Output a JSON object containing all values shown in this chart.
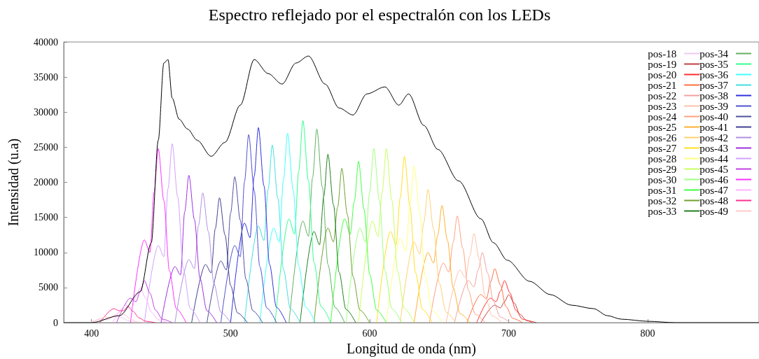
{
  "chart_data": {
    "type": "line",
    "title": "Espectro reflejado por el espectralón con los LEDs",
    "xlabel": "Longitud de onda (nm)",
    "ylabel": "Intensidad (u.a)",
    "xlim": [
      380,
      880
    ],
    "xticks": [
      400,
      500,
      600,
      700,
      800
    ],
    "ylim": [
      0,
      40000
    ],
    "yticks": [
      0,
      5000,
      10000,
      15000,
      20000,
      25000,
      30000,
      35000,
      40000
    ],
    "legend": "top right",
    "marker": "none",
    "series": [
      {
        "color": "#000000",
        "x": [
          380,
          400,
          420,
          435,
          443,
          448,
          452,
          455,
          458,
          463,
          469,
          476,
          486,
          496,
          507,
          517,
          527,
          537,
          547,
          556,
          568,
          578,
          588,
          598,
          611,
          621,
          628,
          639,
          649,
          664,
          680,
          689,
          699,
          715,
          730,
          745,
          761,
          771,
          781,
          800,
          820,
          880
        ],
        "values": [
          0,
          0,
          1000,
          4400,
          11400,
          26000,
          37000,
          37500,
          32000,
          29000,
          27600,
          26000,
          23700,
          25700,
          31000,
          37500,
          35500,
          34000,
          37000,
          38000,
          34000,
          30600,
          29600,
          32600,
          33600,
          31000,
          32600,
          28100,
          24700,
          20200,
          14800,
          11400,
          8900,
          5900,
          4000,
          2500,
          2000,
          1000,
          500,
          200,
          0,
          0
        ]
      },
      {
        "name": "pos-18",
        "color": "#f0c8f0",
        "x": [
          398,
          408,
          412,
          415,
          418,
          422,
          426,
          431,
          438
        ],
        "values": [
          0,
          500,
          400,
          800,
          1000,
          700,
          300,
          100,
          0
        ]
      },
      {
        "name": "pos-19",
        "color": "#c04040",
        "x": [
          680,
          690,
          694,
          697,
          700,
          704,
          708,
          713,
          720
        ],
        "values": [
          0,
          2500,
          2100,
          3000,
          4000,
          2800,
          1200,
          300,
          0
        ]
      },
      {
        "name": "pos-20",
        "color": "#ff3030",
        "x": [
          677,
          687,
          691,
          694,
          697,
          701,
          705,
          710,
          717
        ],
        "values": [
          0,
          3500,
          3000,
          4500,
          6000,
          4200,
          1800,
          500,
          0
        ]
      },
      {
        "name": "pos-21",
        "color": "#ff7040",
        "x": [
          670,
          680,
          684,
          687,
          690,
          694,
          698,
          703,
          710
        ],
        "values": [
          0,
          4000,
          3400,
          5800,
          7700,
          5400,
          2300,
          600,
          0
        ]
      },
      {
        "name": "pos-22",
        "color": "#f0a0a0",
        "x": [
          661,
          671,
          675,
          678,
          681,
          685,
          689,
          694,
          701
        ],
        "values": [
          0,
          6000,
          5100,
          7500,
          10000,
          7000,
          3000,
          800,
          0
        ]
      },
      {
        "name": "pos-23",
        "color": "#ffc0a8",
        "x": [
          655,
          665,
          669,
          672,
          675,
          679,
          683,
          688,
          695
        ],
        "values": [
          0,
          7500,
          6400,
          9500,
          12700,
          8900,
          3800,
          1000,
          0
        ]
      },
      {
        "name": "pos-24",
        "color": "#ffa080",
        "x": [
          643,
          653,
          657,
          660,
          663,
          667,
          671,
          676,
          683
        ],
        "values": [
          0,
          8500,
          7200,
          11400,
          15200,
          10600,
          4600,
          1200,
          0
        ]
      },
      {
        "name": "pos-25",
        "color": "#ffb030",
        "x": [
          632,
          642,
          646,
          649,
          652,
          656,
          660,
          665,
          672
        ],
        "values": [
          0,
          10000,
          8500,
          12500,
          16700,
          11700,
          5000,
          1300,
          0
        ]
      },
      {
        "name": "pos-26",
        "color": "#ffd070",
        "x": [
          622,
          632,
          636,
          639,
          642,
          646,
          650,
          655,
          662
        ],
        "values": [
          0,
          11500,
          9800,
          14300,
          19000,
          13300,
          5700,
          1500,
          0
        ]
      },
      {
        "name": "pos-27",
        "color": "#ffe020",
        "x": [
          605,
          615,
          619,
          622,
          625,
          629,
          633,
          638,
          645
        ],
        "values": [
          0,
          13000,
          11100,
          17800,
          23700,
          16600,
          7100,
          1900,
          0
        ]
      },
      {
        "name": "pos-28",
        "color": "#ffff80",
        "x": [
          612,
          622,
          626,
          629,
          632,
          636,
          640,
          645,
          652
        ],
        "values": [
          0,
          12000,
          10200,
          16700,
          22300,
          15600,
          6700,
          1800,
          0
        ]
      },
      {
        "name": "pos-29",
        "color": "#c8ff60",
        "x": [
          592,
          602,
          606,
          609,
          612,
          616,
          620,
          625,
          632
        ],
        "values": [
          0,
          14500,
          12300,
          18600,
          24800,
          17400,
          7400,
          2000,
          0
        ]
      },
      {
        "name": "pos-30",
        "color": "#a0ff80",
        "x": [
          583,
          593,
          597,
          600,
          603,
          607,
          611,
          616,
          623
        ],
        "values": [
          0,
          13500,
          11500,
          18600,
          24800,
          17400,
          7400,
          2000,
          0
        ]
      },
      {
        "name": "pos-31",
        "color": "#40ff40",
        "x": [
          572,
          582,
          586,
          589,
          592,
          596,
          600,
          605,
          612
        ],
        "values": [
          0,
          14800,
          12600,
          17300,
          23000,
          16100,
          6900,
          1800,
          0
        ]
      },
      {
        "name": "pos-32",
        "color": "#70a030",
        "x": [
          560,
          570,
          574,
          577,
          580,
          584,
          588,
          593,
          600
        ],
        "values": [
          0,
          13500,
          11500,
          16500,
          22000,
          15400,
          6600,
          1800,
          0
        ]
      },
      {
        "name": "pos-33",
        "color": "#208020",
        "x": [
          550,
          560,
          564,
          567,
          570,
          574,
          578,
          583,
          590
        ],
        "values": [
          0,
          13000,
          11100,
          18000,
          24000,
          16800,
          7200,
          1900,
          0
        ]
      },
      {
        "name": "pos-34",
        "color": "#60b060",
        "x": [
          542,
          552,
          556,
          559,
          562,
          566,
          570,
          575,
          582
        ],
        "values": [
          0,
          14500,
          12300,
          20700,
          27600,
          19300,
          8300,
          2200,
          0
        ]
      },
      {
        "name": "pos-35",
        "color": "#30ff90",
        "x": [
          532,
          542,
          546,
          549,
          552,
          556,
          560,
          565,
          572
        ],
        "values": [
          0,
          14800,
          12600,
          21600,
          28800,
          20200,
          8600,
          2300,
          0
        ]
      },
      {
        "name": "pos-36",
        "color": "#40ffff",
        "x": [
          521,
          531,
          535,
          538,
          541,
          545,
          549,
          554,
          561
        ],
        "values": [
          0,
          13500,
          11500,
          20300,
          27000,
          18900,
          8100,
          2200,
          0
        ]
      },
      {
        "name": "pos-37",
        "color": "#40e0e0",
        "x": [
          510,
          520,
          524,
          527,
          530,
          534,
          538,
          543,
          550
        ],
        "values": [
          0,
          13800,
          11700,
          19000,
          25300,
          17700,
          7600,
          2000,
          0
        ]
      },
      {
        "name": "pos-38",
        "color": "#3030e0",
        "x": [
          500,
          510,
          514,
          517,
          520,
          524,
          528,
          533,
          540
        ],
        "values": [
          0,
          14200,
          12100,
          20900,
          27800,
          19500,
          8300,
          2200,
          0
        ]
      },
      {
        "name": "pos-39",
        "color": "#5050d0",
        "x": [
          493,
          503,
          507,
          510,
          513,
          517,
          521,
          526,
          533
        ],
        "values": [
          0,
          11000,
          9400,
          20100,
          26800,
          18800,
          8000,
          2100,
          0
        ]
      },
      {
        "name": "pos-40",
        "color": "#5050a0",
        "x": [
          483,
          493,
          497,
          500,
          503,
          507,
          511,
          516,
          523
        ],
        "values": [
          0,
          8800,
          7500,
          15600,
          20800,
          14600,
          6200,
          1700,
          0
        ]
      },
      {
        "name": "pos-41",
        "color": "#404090",
        "x": [
          472,
          482,
          486,
          489,
          492,
          496,
          500,
          505,
          512
        ],
        "values": [
          0,
          8300,
          7100,
          13400,
          17800,
          12500,
          5300,
          1400,
          0
        ]
      },
      {
        "name": "pos-42",
        "color": "#b090e0",
        "x": [
          460,
          470,
          474,
          477,
          480,
          484,
          488,
          493,
          500
        ],
        "values": [
          0,
          9000,
          7700,
          13900,
          18500,
          13000,
          5600,
          1500,
          0
        ]
      },
      {
        "name": "pos-43",
        "color": "#a030e0",
        "x": [
          450,
          460,
          464,
          467,
          470,
          474,
          478,
          483,
          490
        ],
        "values": [
          0,
          8000,
          6800,
          15800,
          21000,
          14700,
          6300,
          1700,
          0
        ]
      },
      {
        "name": "pos-44",
        "color": "#d0a0ff",
        "x": [
          438,
          448,
          452,
          455,
          458,
          462,
          466,
          471,
          478
        ],
        "values": [
          0,
          11000,
          9400,
          19100,
          25500,
          17900,
          7700,
          2000,
          0
        ]
      },
      {
        "name": "pos-45",
        "color": "#c040e0",
        "x": [
          418,
          428,
          432,
          435,
          438,
          442,
          446,
          451,
          458
        ],
        "values": [
          0,
          3500,
          3000,
          4500,
          6000,
          4200,
          1800,
          500,
          0
        ]
      },
      {
        "name": "pos-46",
        "color": "#ff30ff",
        "x": [
          428,
          438,
          442,
          445,
          448,
          452,
          456,
          461,
          468
        ],
        "values": [
          0,
          11800,
          10000,
          18600,
          24800,
          17400,
          7400,
          2000,
          0
        ]
      },
      {
        "name": "pos-47",
        "color": "#ffb0ff",
        "x": [
          415,
          425,
          429,
          432,
          435,
          439,
          443,
          448,
          455
        ],
        "values": [
          0,
          2500,
          2100,
          3800,
          5000,
          3500,
          1500,
          400,
          0
        ]
      },
      {
        "name": "pos-48",
        "color": "#ff3090",
        "x": [
          406,
          416,
          420,
          423,
          426,
          430,
          434,
          439,
          446
        ],
        "values": [
          0,
          2000,
          1700,
          1700,
          2300,
          1600,
          700,
          200,
          0
        ]
      },
      {
        "name": "pos-49",
        "color": "#ffc8c8",
        "x": [
          400,
          410,
          414,
          417,
          420,
          424,
          428,
          433,
          440
        ],
        "values": [
          0,
          800,
          700,
          1100,
          1500,
          1100,
          500,
          100,
          0
        ]
      }
    ]
  }
}
